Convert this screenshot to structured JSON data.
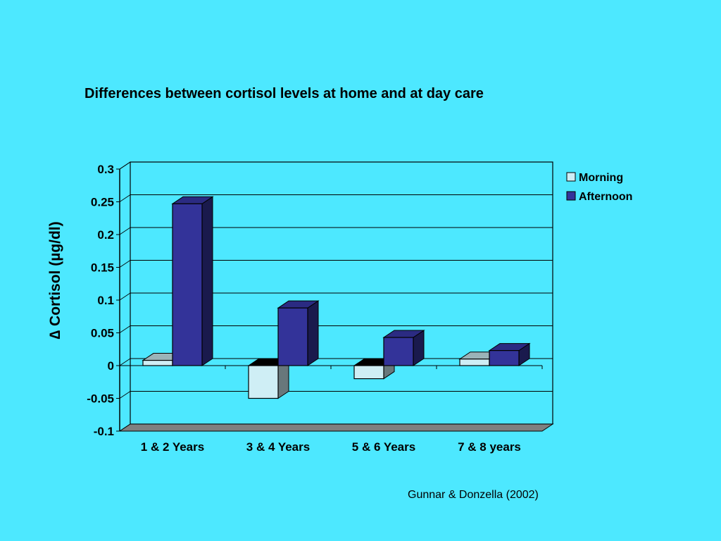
{
  "chart_data": {
    "type": "bar",
    "title": "Differences between cortisol levels at home and at day care",
    "ylabel": "∆ Cortisol (µg/dl)",
    "xlabel": "",
    "categories": [
      "1 & 2 Years",
      "3 & 4 Years",
      "5 & 6 Years",
      "7 & 8 years"
    ],
    "series": [
      {
        "name": "Morning",
        "values": [
          0.008,
          -0.05,
          -0.02,
          0.01
        ],
        "color": "#cfeef5"
      },
      {
        "name": "Afternoon",
        "values": [
          0.247,
          0.088,
          0.043,
          0.023
        ],
        "color": "#333399"
      }
    ],
    "ylim": [
      -0.1,
      0.3
    ],
    "yticks": [
      "0.3",
      "0.25",
      "0.2",
      "0.15",
      "0.1",
      "0.05",
      "0",
      "-0.05",
      "-0.1"
    ],
    "grid": true,
    "legend_position": "right",
    "source": "Gunnar & Donzella (2002)"
  }
}
